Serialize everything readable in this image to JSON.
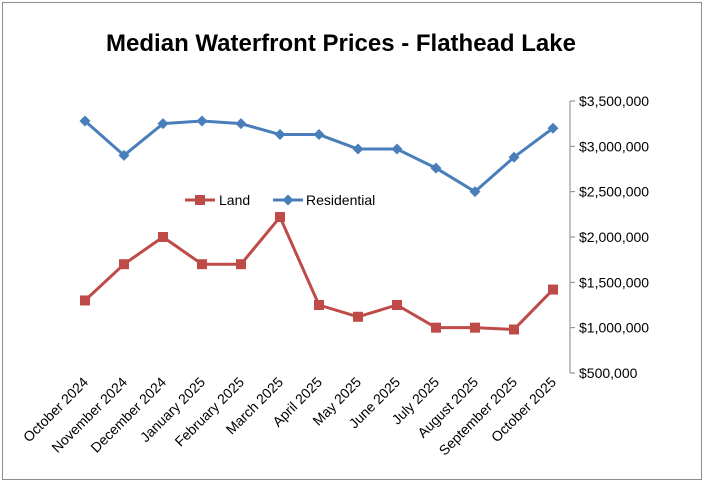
{
  "chart_data": {
    "type": "line",
    "title": "Median Waterfront Prices - Flathead Lake",
    "xlabel": "",
    "ylabel": "",
    "categories": [
      "October 2024",
      "November 2024",
      "December 2024",
      "January 2025",
      "February 2025",
      "March 2025",
      "April 2025",
      "May 2025",
      "June 2025",
      "July 2025",
      "August 2025",
      "September 2025",
      "October 2025"
    ],
    "ylim": [
      500000,
      3500000
    ],
    "yticks": [
      {
        "value": 500000,
        "label": "$500,000"
      },
      {
        "value": 1000000,
        "label": "$1,000,000"
      },
      {
        "value": 1500000,
        "label": "$1,500,000"
      },
      {
        "value": 2000000,
        "label": "$2,000,000"
      },
      {
        "value": 2500000,
        "label": "$2,500,000"
      },
      {
        "value": 3000000,
        "label": "$3,000,000"
      },
      {
        "value": 3500000,
        "label": "$3,500,000"
      }
    ],
    "y_axis_side": "right",
    "grid": false,
    "legend_position": "center",
    "series": [
      {
        "name": "Land",
        "color": "#be4b48",
        "marker": "square",
        "values": [
          1300000,
          1700000,
          2000000,
          1700000,
          1700000,
          2220000,
          1250000,
          1120000,
          1250000,
          1000000,
          1000000,
          980000,
          1420000
        ]
      },
      {
        "name": "Residential",
        "color": "#4a7ebb",
        "marker": "diamond",
        "values": [
          3280000,
          2900000,
          3250000,
          3280000,
          3250000,
          3130000,
          3130000,
          2970000,
          2970000,
          2760000,
          2500000,
          2880000,
          3200000
        ]
      }
    ]
  }
}
